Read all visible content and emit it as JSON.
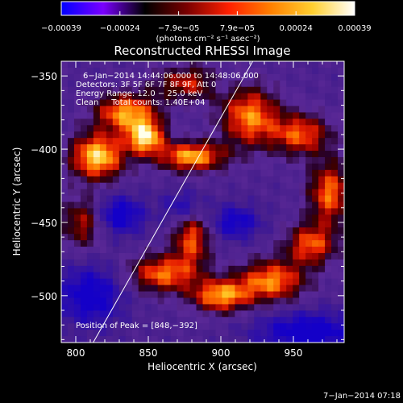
{
  "chart_data": {
    "type": "heatmap",
    "title": "Reconstructed RHESSI Image",
    "xlabel": "Heliocentric X (arcsec)",
    "ylabel": "Heliocentric Y (arcsec)",
    "xlim": [
      790,
      985
    ],
    "ylim": [
      -532,
      -340
    ],
    "x_ticks": [
      800,
      850,
      900,
      950
    ],
    "y_ticks": [
      -350,
      -400,
      -450,
      -500
    ],
    "x_tick_labels": [
      "800",
      "850",
      "900",
      "950"
    ],
    "y_tick_labels": [
      "−350",
      "−400",
      "−450",
      "−500"
    ],
    "colorbar": {
      "tick_labels": [
        "−0.00039",
        "−0.00024",
        "−7.9e−05",
        "7.9e−05",
        "0.00024",
        "0.00039"
      ],
      "unit_label": "(photons cm⁻² s⁻¹ asec⁻²)",
      "range": [
        -0.00039,
        0.00039
      ],
      "colors": [
        "#0000ff",
        "#7a00ff",
        "#000000",
        "#7a0000",
        "#ff2000",
        "#ff8000",
        "#ffd030",
        "#ffffff"
      ]
    },
    "annotations": [
      "6−Jan−2014 14:44:06.000 to 14:48:06.000",
      "Detectors: 3F 5F 6F 7F 8F 9F, Att 0",
      "Energy Range: 12.0 − 25.0 keV",
      "Clean     Total counts: 1.40E+04"
    ],
    "peak_label": "Position of Peak = [848,−392]",
    "peak_position": [
      848,
      -392
    ],
    "limb_line": [
      [
        812,
        -532
      ],
      [
        922,
        -340
      ]
    ],
    "emission_sources": [
      {
        "x": 815,
        "y": -405,
        "amp": 1.0,
        "sx": 13,
        "sy": 11
      },
      {
        "x": 835,
        "y": -375,
        "amp": 0.85,
        "sx": 15,
        "sy": 9
      },
      {
        "x": 848,
        "y": -392,
        "amp": 1.0,
        "sx": 9,
        "sy": 8
      },
      {
        "x": 880,
        "y": -405,
        "amp": 0.9,
        "sx": 16,
        "sy": 7
      },
      {
        "x": 920,
        "y": -378,
        "amp": 0.8,
        "sx": 14,
        "sy": 14
      },
      {
        "x": 955,
        "y": -390,
        "amp": 0.7,
        "sx": 14,
        "sy": 10
      },
      {
        "x": 975,
        "y": -430,
        "amp": 0.75,
        "sx": 10,
        "sy": 15
      },
      {
        "x": 880,
        "y": -460,
        "amp": 0.7,
        "sx": 9,
        "sy": 14
      },
      {
        "x": 860,
        "y": -485,
        "amp": 0.75,
        "sx": 16,
        "sy": 9
      },
      {
        "x": 900,
        "y": -500,
        "amp": 0.85,
        "sx": 14,
        "sy": 8
      },
      {
        "x": 935,
        "y": -490,
        "amp": 0.8,
        "sx": 16,
        "sy": 10
      },
      {
        "x": 962,
        "y": -465,
        "amp": 0.7,
        "sx": 12,
        "sy": 10
      },
      {
        "x": 805,
        "y": -450,
        "amp": 0.55,
        "sx": 10,
        "sy": 12
      },
      {
        "x": 880,
        "y": -355,
        "amp": 0.6,
        "sx": 18,
        "sy": 8
      }
    ],
    "dark_regions": [
      {
        "x": 875,
        "y": -440,
        "amp": 0.55,
        "sx": 10,
        "sy": 8
      },
      {
        "x": 830,
        "y": -445,
        "amp": 0.7,
        "sx": 12,
        "sy": 9
      },
      {
        "x": 910,
        "y": -450,
        "amp": 0.6,
        "sx": 12,
        "sy": 8
      },
      {
        "x": 810,
        "y": -500,
        "amp": 0.7,
        "sx": 15,
        "sy": 14
      },
      {
        "x": 960,
        "y": -525,
        "amp": 0.7,
        "sx": 25,
        "sy": 10
      },
      {
        "x": 900,
        "y": -355,
        "amp": 0.35,
        "sx": 10,
        "sy": 6
      }
    ],
    "footer_timestamp": "7−Jan−2014 07:18"
  }
}
